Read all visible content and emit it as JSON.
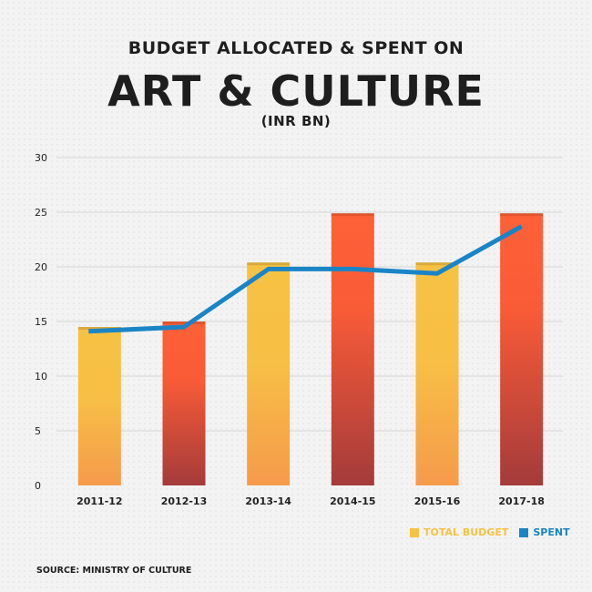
{
  "title_line1": "BUDGET ALLOCATED & SPENT ON",
  "title_line2": "ART & CULTURE",
  "title_unit": "(INR BN)",
  "source": "SOURCE: MINISTRY OF CULTURE",
  "legend": {
    "budget_label": "TOTAL BUDGET",
    "spent_label": "SPENT",
    "budget_color": "#f6c244",
    "spent_color": "#1a85c6"
  },
  "colors": {
    "yellow_top": "#f6c244",
    "yellow_bottom": "#f69a4c",
    "red_top": "#fe6037",
    "red_bottom": "#a43b3b",
    "line": "#1a85c6",
    "grid": "#d4d4d4"
  },
  "chart_data": {
    "type": "bar",
    "categories": [
      "2011-12",
      "2012-13",
      "2013-14",
      "2014-15",
      "2015-16",
      "2017-18"
    ],
    "series": [
      {
        "name": "TOTAL BUDGET",
        "type": "bar",
        "values": [
          14.5,
          15.0,
          20.4,
          24.9,
          20.4,
          24.9
        ]
      },
      {
        "name": "SPENT",
        "type": "line",
        "values": [
          14.1,
          14.5,
          19.8,
          19.8,
          19.4,
          23.7
        ]
      }
    ],
    "bar_color_pattern": [
      "yellow",
      "red",
      "yellow",
      "red",
      "yellow",
      "red"
    ],
    "ylim": [
      0,
      30
    ],
    "yticks": [
      0,
      5,
      10,
      15,
      20,
      25,
      30
    ],
    "grid": true,
    "legend_position": "bottom-right"
  }
}
